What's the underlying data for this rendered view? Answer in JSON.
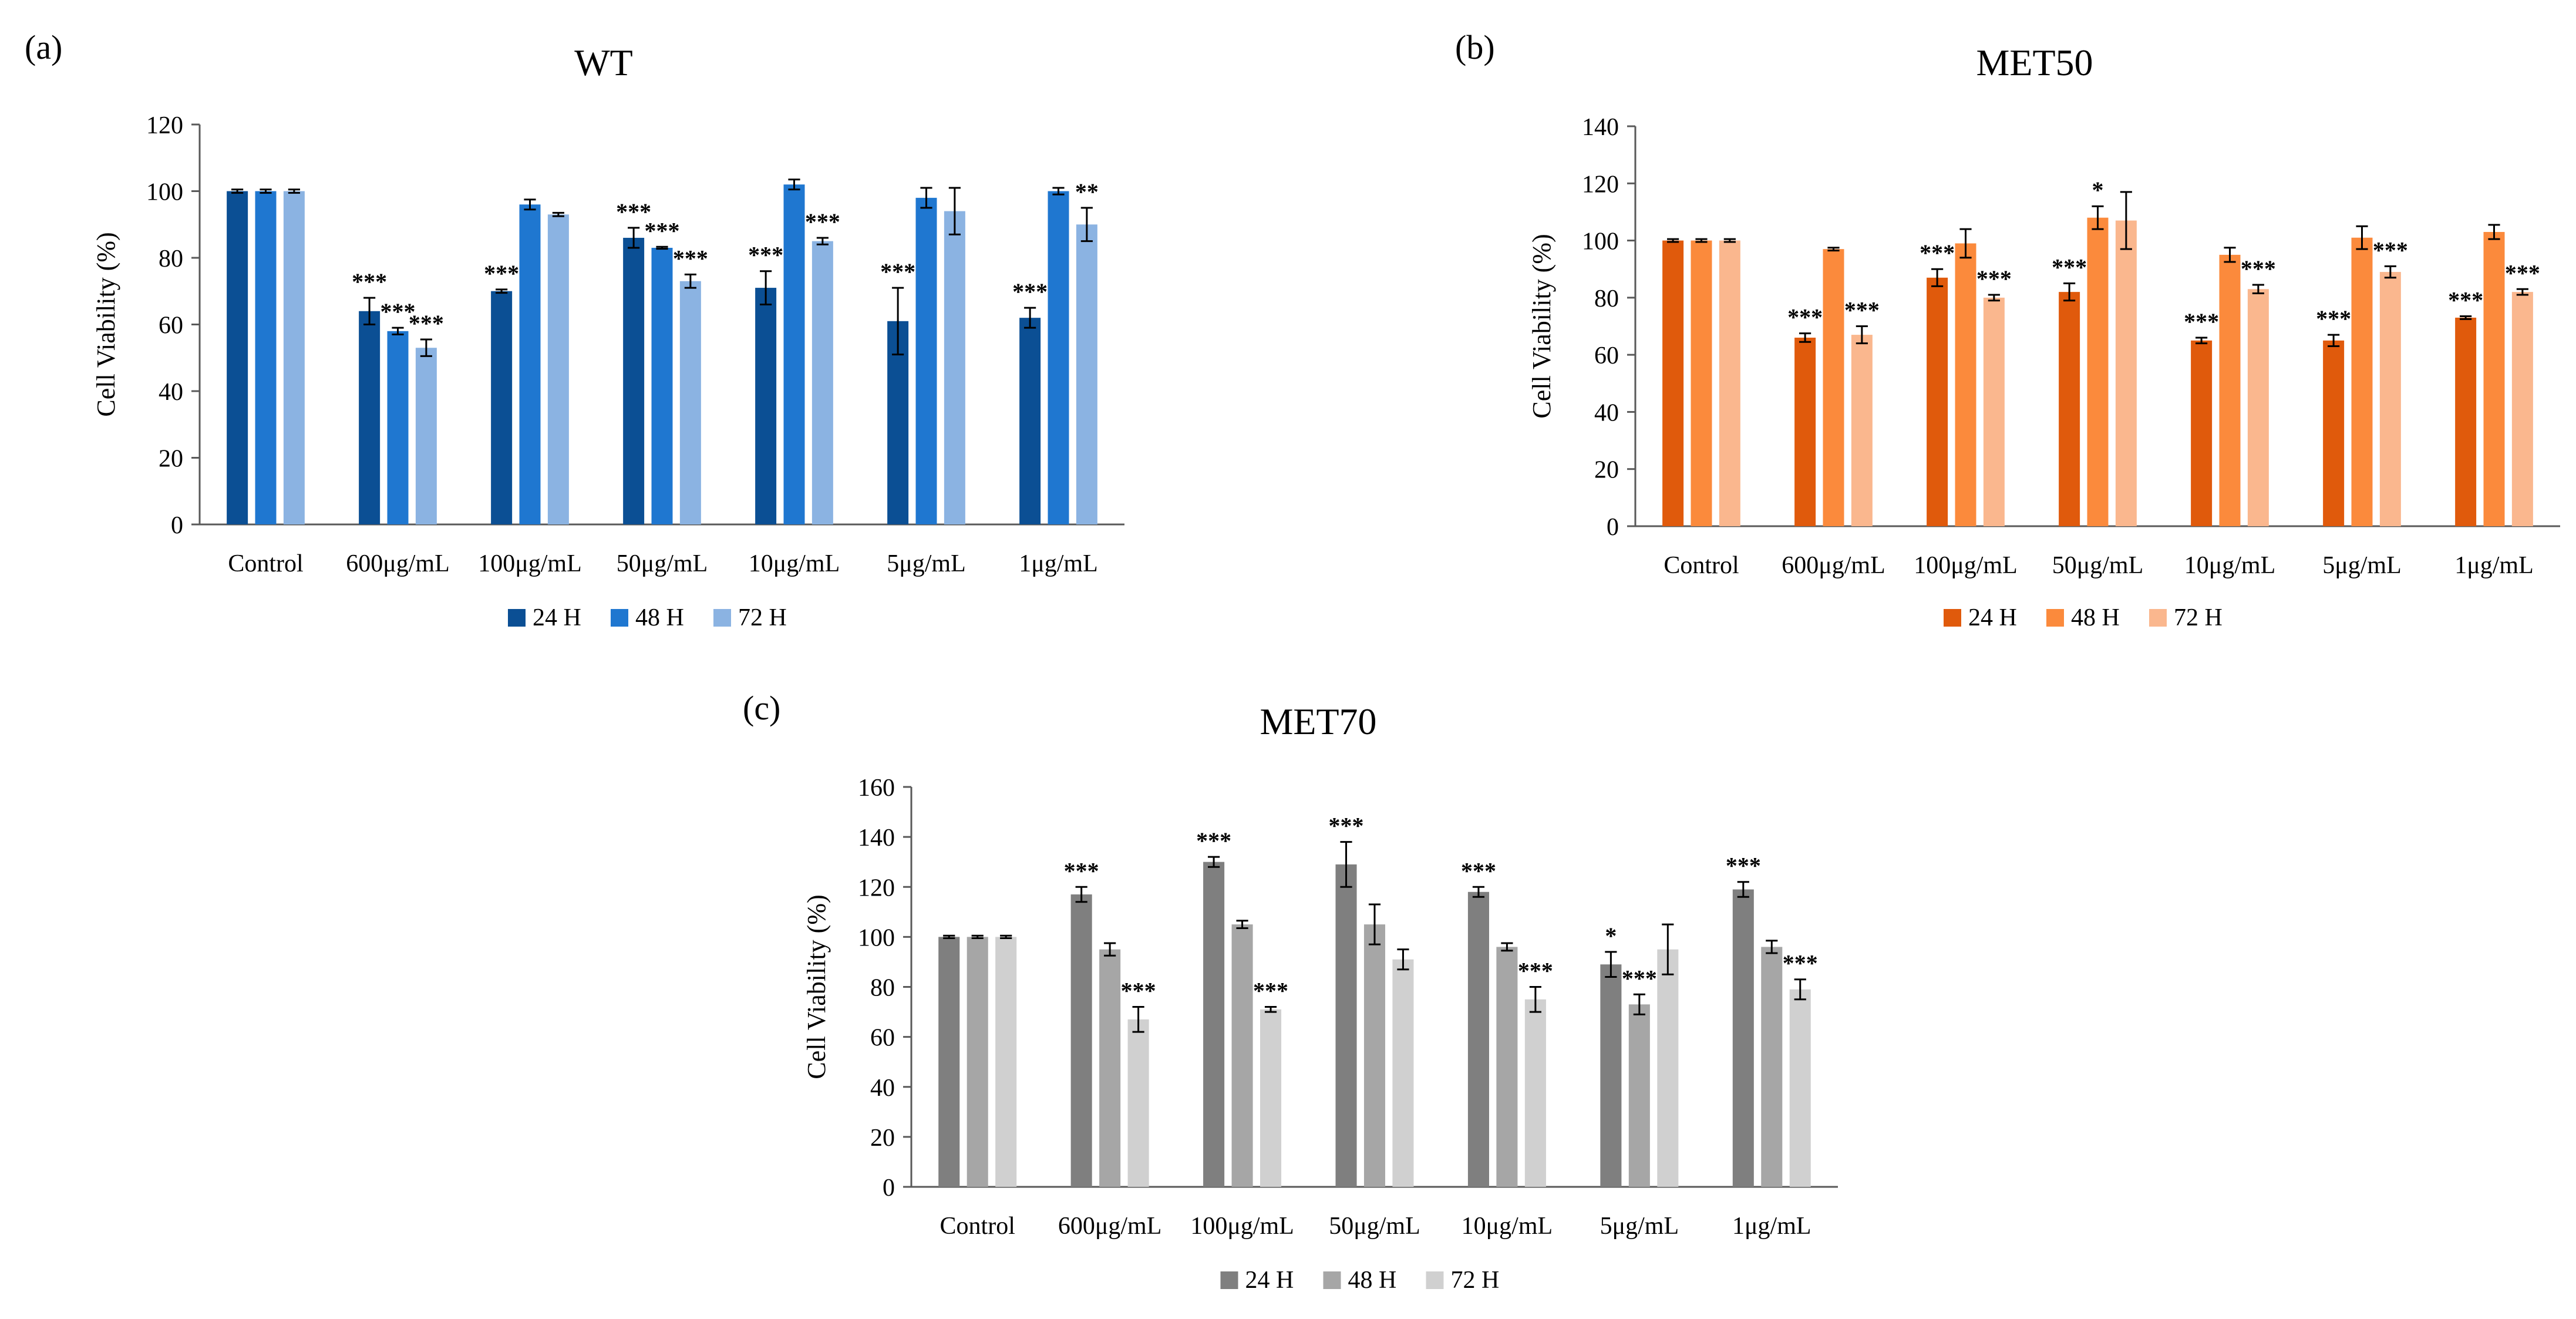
{
  "chart_data": [
    {
      "panel_label": "(a)",
      "type": "bar",
      "title": "WT",
      "xlabel": "",
      "ylabel": "Cell Viability (%)",
      "ylim": [
        0,
        120
      ],
      "yticks": [
        "0",
        "20",
        "40",
        "60",
        "80",
        "100",
        "120"
      ],
      "grid": false,
      "legend_position": "bottom",
      "categories": [
        "Control",
        "600μg/mL",
        "100μg/mL",
        "50μg/mL",
        "10μg/mL",
        "5μg/mL",
        "1μg/mL"
      ],
      "series": [
        {
          "name": "24 H",
          "color": "#0b4f94",
          "values": [
            100,
            64,
            70,
            86,
            71,
            61,
            62
          ],
          "errors": [
            0.5,
            4,
            0.5,
            3,
            5,
            10,
            3
          ],
          "stars": [
            "",
            "***",
            "***",
            "***",
            "***",
            "***",
            "***"
          ]
        },
        {
          "name": "48 H",
          "color": "#1f77d0",
          "values": [
            100,
            58,
            96,
            83,
            102,
            98,
            100
          ],
          "errors": [
            0.5,
            1,
            1.5,
            0.3,
            1.5,
            3,
            1
          ],
          "stars": [
            "",
            "***",
            "",
            "***",
            "",
            "",
            ""
          ]
        },
        {
          "name": "72 H",
          "color": "#8bb3e2",
          "values": [
            100,
            53,
            93,
            73,
            85,
            94,
            90
          ],
          "errors": [
            0.5,
            2.5,
            0.5,
            2,
            1,
            7,
            5
          ],
          "stars": [
            "",
            "***",
            "",
            "***",
            "***",
            "",
            "**"
          ]
        }
      ]
    },
    {
      "panel_label": "(b)",
      "type": "bar",
      "title": "MET50",
      "xlabel": "",
      "ylabel": "Cell Viability (%)",
      "ylim": [
        0,
        140
      ],
      "yticks": [
        "0",
        "20",
        "40",
        "60",
        "80",
        "100",
        "120",
        "140"
      ],
      "grid": false,
      "legend_position": "bottom",
      "categories": [
        "Control",
        "600μg/mL",
        "100μg/mL",
        "50μg/mL",
        "10μg/mL",
        "5μg/mL",
        "1μg/mL"
      ],
      "series": [
        {
          "name": "24 H",
          "color": "#e05a0c",
          "values": [
            100,
            66,
            87,
            82,
            65,
            65,
            73
          ],
          "errors": [
            0.5,
            1.5,
            3,
            3,
            1,
            2,
            0.5
          ],
          "stars": [
            "",
            "***",
            "***",
            "***",
            "***",
            "***",
            "***"
          ]
        },
        {
          "name": "48 H",
          "color": "#fb8a3c",
          "values": [
            100,
            97,
            99,
            108,
            95,
            101,
            103
          ],
          "errors": [
            0.5,
            0.5,
            5,
            4,
            2.5,
            4,
            2.5
          ],
          "stars": [
            "",
            "",
            "",
            "*",
            "",
            "",
            ""
          ]
        },
        {
          "name": "72 H",
          "color": "#fab78e",
          "values": [
            100,
            67,
            80,
            107,
            83,
            89,
            82
          ],
          "errors": [
            0.5,
            3,
            1,
            10,
            1.5,
            2,
            1
          ],
          "stars": [
            "",
            "***",
            "***",
            "",
            "***",
            "***",
            "***"
          ]
        }
      ]
    },
    {
      "panel_label": "(c)",
      "type": "bar",
      "title": "MET70",
      "xlabel": "",
      "ylabel": "Cell Viability (%)",
      "ylim": [
        0,
        160
      ],
      "yticks": [
        "0",
        "20",
        "40",
        "60",
        "80",
        "100",
        "120",
        "140",
        "160"
      ],
      "grid": false,
      "legend_position": "bottom",
      "categories": [
        "Control",
        "600μg/mL",
        "100μg/mL",
        "50μg/mL",
        "10μg/mL",
        "5μg/mL",
        "1μg/mL"
      ],
      "series": [
        {
          "name": "24 H",
          "color": "#7f7f7f",
          "values": [
            100,
            117,
            130,
            129,
            118,
            89,
            119
          ],
          "errors": [
            0.5,
            3,
            2,
            9,
            2,
            5,
            3
          ],
          "stars": [
            "",
            "***",
            "***",
            "***",
            "***",
            "*",
            "***"
          ]
        },
        {
          "name": "48 H",
          "color": "#a6a6a6",
          "values": [
            100,
            95,
            105,
            105,
            96,
            73,
            96
          ],
          "errors": [
            0.5,
            2.5,
            1.5,
            8,
            1.5,
            4,
            2.5
          ],
          "stars": [
            "",
            "",
            "",
            "",
            "",
            "***",
            ""
          ]
        },
        {
          "name": "72 H",
          "color": "#d0d0d0",
          "values": [
            100,
            67,
            71,
            91,
            75,
            95,
            79
          ],
          "errors": [
            0.5,
            5,
            1,
            4,
            5,
            10,
            4
          ],
          "stars": [
            "",
            "***",
            "***",
            "",
            "***",
            "",
            "***"
          ]
        }
      ]
    }
  ]
}
